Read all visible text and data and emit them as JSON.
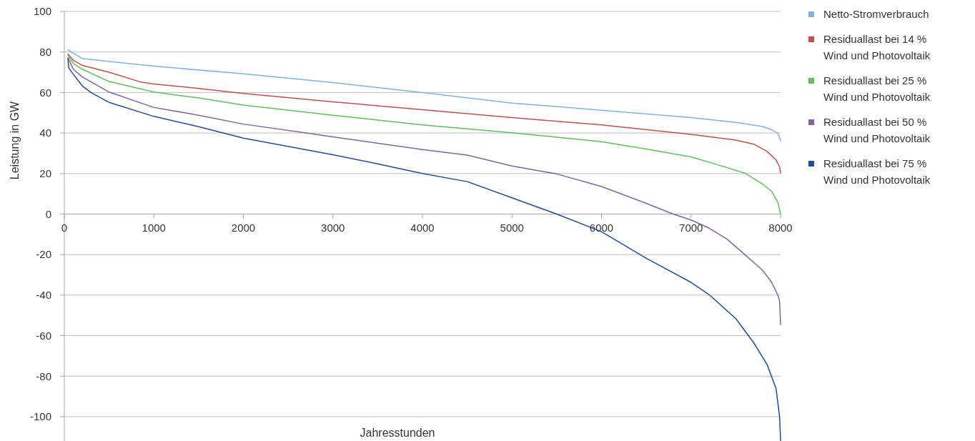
{
  "chart_data": {
    "type": "line",
    "xlabel": "Jahresstunden",
    "ylabel": "Leistung in GW",
    "xlim": [
      0,
      8000
    ],
    "xticks": [
      0,
      1000,
      2000,
      3000,
      4000,
      5000,
      6000,
      7000,
      8000
    ],
    "ylim": [
      -112,
      100
    ],
    "yticks": [
      -100,
      -80,
      -60,
      -40,
      -20,
      0,
      20,
      40,
      60,
      80,
      100
    ],
    "grid": "y",
    "legend": "top right",
    "marker": "none",
    "line_style": "solid",
    "series": [
      {
        "name": "Netto-Stromverbrauch",
        "color": "#7fb2e5",
        "x": [
          40,
          200,
          500,
          1000,
          2000,
          3000,
          4000,
          5000,
          6000,
          7000,
          7500,
          7800,
          7900,
          7970,
          8000
        ],
        "values": [
          81,
          76.8,
          75.3,
          73,
          69.2,
          64.9,
          60,
          54.8,
          51.2,
          47.6,
          45.2,
          43.2,
          41.6,
          39.9,
          36.3
        ]
      },
      {
        "name": "Residuallast bei 14 % Wind und Photovoltaik",
        "color": "#c0504d",
        "x": [
          40,
          100,
          200,
          500,
          850,
          1000,
          1500,
          2000,
          3000,
          4000,
          5000,
          6000,
          7000,
          7500,
          7700,
          7850,
          7950,
          7990,
          8000
        ],
        "values": [
          79,
          75.9,
          73.4,
          70,
          65.2,
          64.2,
          62,
          59.5,
          55.4,
          51.5,
          47.6,
          44,
          39.3,
          36.5,
          34.5,
          30.9,
          26.7,
          23.2,
          20.2
        ]
      },
      {
        "name": "Residuallast bei 25 % Wind und Photovoltaik",
        "color": "#5fbf5a",
        "x": [
          40,
          100,
          200,
          500,
          1000,
          1500,
          2000,
          3000,
          4000,
          5000,
          6000,
          6500,
          7000,
          7300,
          7600,
          7800,
          7900,
          7970,
          8000
        ],
        "values": [
          78.4,
          74.3,
          71.5,
          65.4,
          60.2,
          57.3,
          53.8,
          48.8,
          44,
          40.1,
          35.7,
          32.1,
          28.2,
          24.3,
          20.2,
          14.8,
          11.2,
          5.8,
          0
        ]
      },
      {
        "name": "Residuallast bei 50 % Wind und Photovoltaik",
        "color": "#8064a2",
        "x": [
          40,
          100,
          200,
          300,
          500,
          1000,
          1500,
          2000,
          2700,
          3000,
          4000,
          4500,
          5000,
          5500,
          6000,
          6500,
          6800,
          7000,
          7200,
          7400,
          7600,
          7800,
          7900,
          7970,
          7990,
          8000
        ],
        "values": [
          77.2,
          71.5,
          67.7,
          65.2,
          60.2,
          52.6,
          48.8,
          44.4,
          40,
          38.1,
          31.8,
          29.1,
          23.7,
          19.8,
          13.6,
          5.3,
          0,
          -2.9,
          -6.9,
          -12.3,
          -20,
          -27.8,
          -33.7,
          -40,
          -43.3,
          -54.6
        ]
      },
      {
        "name": "Residuallast bei 75 % Wind und Photovoltaik",
        "color": "#1f4e9a",
        "x": [
          40,
          50,
          100,
          200,
          300,
          500,
          1000,
          1500,
          2000,
          3000,
          3500,
          4000,
          4500,
          5000,
          5500,
          6000,
          6500,
          7000,
          7200,
          7500,
          7700,
          7850,
          7950,
          7990,
          8000
        ],
        "values": [
          76.5,
          72.1,
          69,
          63.3,
          59.9,
          55.1,
          48.2,
          43.1,
          37.5,
          29.3,
          24.8,
          20,
          16,
          8,
          0,
          -8.7,
          -21.8,
          -33.7,
          -39.7,
          -51.6,
          -63.5,
          -74.3,
          -86.2,
          -100.5,
          -111.8
        ]
      }
    ]
  }
}
